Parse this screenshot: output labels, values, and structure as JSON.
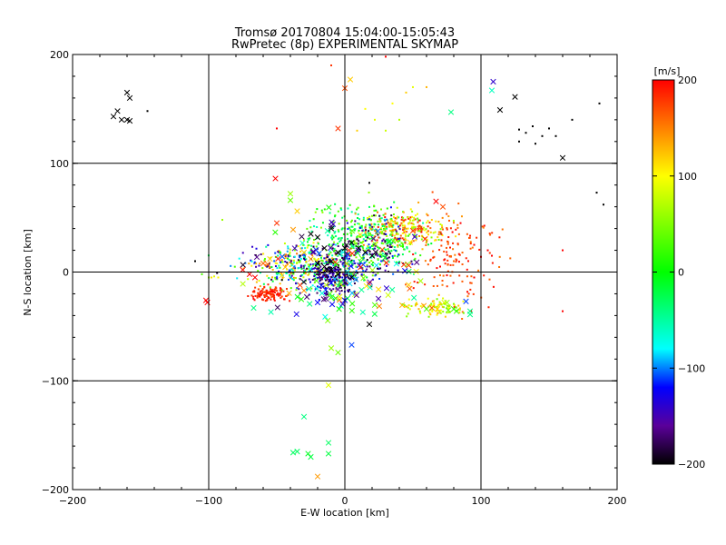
{
  "chart_data": {
    "type": "scatter",
    "title": "Tromsø 20170804 15:04:00-15:05:43",
    "subtitle": "RwPretec (8p) EXPERIMENTAL SKYMAP",
    "xlabel": "E-W location [km]",
    "ylabel": "N-S location [km]",
    "xlim": [
      -200,
      200
    ],
    "ylim": [
      -200,
      200
    ],
    "xticks": [
      "−200",
      "−100",
      "0",
      "100",
      "200"
    ],
    "yticks": [
      "200",
      "100",
      "0",
      "−100",
      "−200"
    ],
    "grid": true,
    "colorbar": {
      "unit": "[m/s]",
      "min": -200,
      "max": 200,
      "ticks": [
        "200",
        "100",
        "0",
        "−100",
        "−200"
      ]
    },
    "series": [
      {
        "name": "crosses",
        "marker": "x",
        "points": [
          [
            -160,
            165,
            -200
          ],
          [
            -158,
            160,
            -200
          ],
          [
            -167,
            148,
            -200
          ],
          [
            -170,
            143,
            -200
          ],
          [
            -164,
            140,
            -200
          ],
          [
            -160,
            140,
            -200
          ],
          [
            -158,
            139,
            -200
          ],
          [
            109,
            175,
            -140
          ],
          [
            108,
            167,
            -60
          ],
          [
            125,
            161,
            -200
          ],
          [
            114,
            149,
            -200
          ],
          [
            160,
            105,
            -200
          ],
          [
            78,
            147,
            -40
          ],
          [
            -5,
            132,
            180
          ],
          [
            0,
            169,
            170
          ],
          [
            4,
            177,
            120
          ],
          [
            -51,
            86,
            200
          ],
          [
            -40,
            72,
            60
          ],
          [
            -40,
            66,
            40
          ],
          [
            -35,
            56,
            120
          ],
          [
            -50,
            45,
            180
          ],
          [
            -38,
            39,
            140
          ],
          [
            -25,
            35,
            -200
          ],
          [
            -20,
            32,
            -200
          ],
          [
            -10,
            40,
            -200
          ],
          [
            -15,
            22,
            -200
          ],
          [
            -5,
            18,
            -200
          ],
          [
            0,
            22,
            -200
          ],
          [
            5,
            27,
            -200
          ],
          [
            10,
            22,
            -200
          ],
          [
            15,
            18,
            -200
          ],
          [
            20,
            15,
            -200
          ],
          [
            -30,
            18,
            120
          ],
          [
            -25,
            12,
            140
          ],
          [
            -20,
            8,
            -200
          ],
          [
            -15,
            5,
            -200
          ],
          [
            -10,
            2,
            -200
          ],
          [
            -5,
            -2,
            -200
          ],
          [
            5,
            -5,
            -200
          ],
          [
            0,
            -10,
            -150
          ],
          [
            67,
            65,
            200
          ],
          [
            72,
            60,
            170
          ],
          [
            50,
            38,
            180
          ],
          [
            55,
            40,
            170
          ],
          [
            -70,
            -2,
            200
          ],
          [
            -75,
            2,
            200
          ],
          [
            -66,
            -5,
            200
          ],
          [
            -60,
            8,
            160
          ],
          [
            -55,
            12,
            120
          ],
          [
            -67,
            -33,
            -40
          ],
          [
            -33,
            -12,
            180
          ],
          [
            -30,
            -17,
            140
          ],
          [
            -20,
            -28,
            -120
          ],
          [
            -10,
            -10,
            -120
          ],
          [
            -5,
            -16,
            -160
          ],
          [
            0,
            -26,
            -120
          ],
          [
            18,
            -48,
            -200
          ],
          [
            -10,
            -70,
            60
          ],
          [
            -5,
            -74,
            40
          ],
          [
            5,
            -67,
            -110
          ],
          [
            -12,
            -104,
            90
          ],
          [
            -30,
            -133,
            -40
          ],
          [
            -35,
            -165,
            -30
          ],
          [
            -38,
            -166,
            -30
          ],
          [
            -25,
            -170,
            -20
          ],
          [
            -27,
            -167,
            -10
          ],
          [
            -12,
            -157,
            -30
          ],
          [
            -12,
            -167,
            -20
          ],
          [
            -20,
            -188,
            140
          ],
          [
            73,
            -28,
            90
          ],
          [
            68,
            -34,
            120
          ],
          [
            58,
            -31,
            140
          ],
          [
            60,
            -34,
            30
          ],
          [
            75,
            -28,
            60
          ],
          [
            82,
            -36,
            20
          ],
          [
            89,
            -27,
            -110
          ],
          [
            92,
            -36,
            -40
          ],
          [
            92,
            -39,
            -40
          ],
          [
            80,
            -34,
            20
          ],
          [
            76,
            -35,
            40
          ],
          [
            64,
            -33,
            160
          ],
          [
            -102,
            -26,
            200
          ],
          [
            -101,
            -28,
            200
          ]
        ]
      },
      {
        "name": "dots",
        "marker": "dot",
        "points": [
          [
            -145,
            148,
            -200
          ],
          [
            128,
            131,
            -200
          ],
          [
            133,
            128,
            -200
          ],
          [
            138,
            134,
            -200
          ],
          [
            128,
            120,
            -200
          ],
          [
            145,
            125,
            -200
          ],
          [
            150,
            132,
            -200
          ],
          [
            155,
            125,
            -200
          ],
          [
            167,
            140,
            -200
          ],
          [
            140,
            118,
            -200
          ],
          [
            187,
            155,
            -200
          ],
          [
            185,
            73,
            -200
          ],
          [
            190,
            62,
            -200
          ],
          [
            9,
            130,
            120
          ],
          [
            15,
            150,
            100
          ],
          [
            22,
            140,
            90
          ],
          [
            30,
            130,
            80
          ],
          [
            35,
            155,
            100
          ],
          [
            40,
            140,
            70
          ],
          [
            45,
            165,
            120
          ],
          [
            50,
            170,
            90
          ],
          [
            60,
            170,
            130
          ],
          [
            30,
            198,
            200
          ],
          [
            -10,
            190,
            180
          ],
          [
            -50,
            132,
            200
          ],
          [
            -90,
            48,
            60
          ],
          [
            -100,
            -5,
            60
          ],
          [
            -105,
            -2,
            30
          ],
          [
            -110,
            10,
            -200
          ],
          [
            -93,
            -5,
            100
          ],
          [
            -96,
            -4,
            90
          ],
          [
            -98,
            -5,
            110
          ],
          [
            160,
            -36,
            200
          ],
          [
            160,
            20,
            200
          ],
          [
            18,
            82,
            -200
          ],
          [
            95,
            25,
            200
          ],
          [
            100,
            14,
            200
          ],
          [
            95,
            -5,
            200
          ],
          [
            85,
            45,
            200
          ],
          [
            105,
            20,
            200
          ],
          [
            108,
            15,
            200
          ],
          [
            70,
            5,
            200
          ],
          [
            75,
            -3,
            200
          ],
          [
            80,
            10,
            160
          ]
        ]
      }
    ],
    "clusters": [
      {
        "cx": -30,
        "cy": 5,
        "sx": 22,
        "sy": 10,
        "n": 360,
        "vmin": -200,
        "vmax": 160,
        "marker": "dot"
      },
      {
        "cx": 15,
        "cy": 32,
        "sx": 20,
        "sy": 14,
        "n": 340,
        "vmin": -60,
        "vmax": 60,
        "marker": "dot"
      },
      {
        "cx": 45,
        "cy": 40,
        "sx": 15,
        "sy": 8,
        "n": 230,
        "vmin": 40,
        "vmax": 200,
        "marker": "dot"
      },
      {
        "cx": -55,
        "cy": -20,
        "sx": 7,
        "sy": 3,
        "n": 120,
        "vmin": 170,
        "vmax": 200,
        "marker": "dot"
      },
      {
        "cx": -8,
        "cy": -3,
        "sx": 10,
        "sy": 10,
        "n": 220,
        "vmin": -200,
        "vmax": -120,
        "marker": "dot"
      },
      {
        "cx": 80,
        "cy": 15,
        "sx": 15,
        "sy": 22,
        "n": 130,
        "vmin": 150,
        "vmax": 200,
        "marker": "dot"
      },
      {
        "cx": 65,
        "cy": -32,
        "sx": 10,
        "sy": 4,
        "n": 90,
        "vmin": 40,
        "vmax": 140,
        "marker": "dot"
      },
      {
        "cx": 20,
        "cy": 22,
        "sx": 13,
        "sy": 14,
        "n": 120,
        "vmin": -200,
        "vmax": -100,
        "marker": "dot"
      },
      {
        "cx": 0,
        "cy": 0,
        "sx": 30,
        "sy": 22,
        "n": 140,
        "vmin": -200,
        "vmax": 200,
        "marker": "x"
      }
    ]
  }
}
